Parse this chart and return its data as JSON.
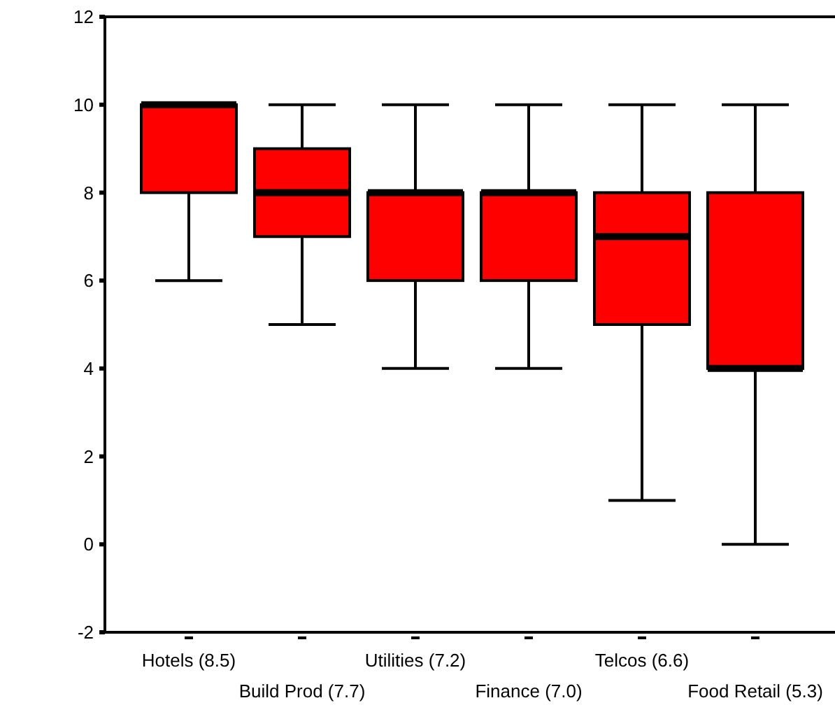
{
  "chart_data": {
    "type": "box",
    "categories": [
      "Hotels (8.5)",
      "Build Prod (7.7)",
      "Utilities (7.2)",
      "Finance (7.0)",
      "Telcos (6.6)",
      "Food Retail (5.3)"
    ],
    "color": "#ff0000",
    "boxes": [
      {
        "low": 6,
        "q1": 8,
        "median": 10,
        "q3": 10,
        "high": 10
      },
      {
        "low": 5,
        "q1": 7,
        "median": 8,
        "q3": 9,
        "high": 10
      },
      {
        "low": 4,
        "q1": 6,
        "median": 8,
        "q3": 8,
        "high": 10
      },
      {
        "low": 4,
        "q1": 6,
        "median": 8,
        "q3": 8,
        "high": 10
      },
      {
        "low": 1,
        "q1": 5,
        "median": 7,
        "q3": 8,
        "high": 10
      },
      {
        "low": 0,
        "q1": 4,
        "median": 4,
        "q3": 8,
        "high": 10
      }
    ],
    "ylim": [
      -2,
      12
    ],
    "yticks": [
      -2,
      0,
      2,
      4,
      6,
      8,
      10,
      12
    ]
  }
}
